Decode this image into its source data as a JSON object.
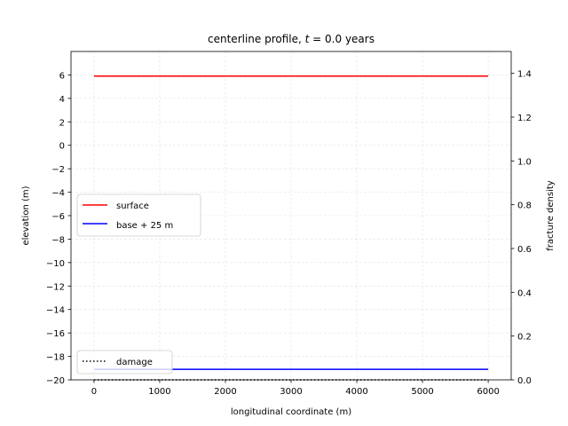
{
  "chart_data": {
    "type": "line",
    "title_prefix": "centerline profile, ",
    "title_var": "t",
    "title_suffix": " = 0.0 years",
    "xlabel": "longitudinal coordinate (m)",
    "ylabel": "elevation (m)",
    "y2label": "fracture density",
    "xlim": [
      -350,
      6350
    ],
    "ylim": [
      -20,
      8
    ],
    "y2lim": [
      0,
      1.5
    ],
    "xticks": [
      0,
      1000,
      2000,
      3000,
      4000,
      5000,
      6000
    ],
    "yticks": [
      -20,
      -18,
      -16,
      -14,
      -12,
      -10,
      -8,
      -6,
      -4,
      -2,
      0,
      2,
      4,
      6
    ],
    "y2ticks": [
      0.0,
      0.2,
      0.4,
      0.6,
      0.8,
      1.0,
      1.2,
      1.4
    ],
    "xtick_labels": [
      "0",
      "1000",
      "2000",
      "3000",
      "4000",
      "5000",
      "6000"
    ],
    "ytick_labels": [
      "−20",
      "−18",
      "−16",
      "−14",
      "−12",
      "−10",
      "−8",
      "−6",
      "−4",
      "−2",
      "0",
      "2",
      "4",
      "6"
    ],
    "y2tick_labels": [
      "0.0",
      "0.2",
      "0.4",
      "0.6",
      "0.8",
      "1.0",
      "1.2",
      "1.4"
    ],
    "grid": true,
    "series": [
      {
        "name": "surface",
        "axis": "left",
        "color": "#ff0000",
        "style": "solid",
        "x": [
          0,
          6000
        ],
        "y": [
          5.9,
          5.9
        ]
      },
      {
        "name": "base + 25 m",
        "axis": "left",
        "color": "#0000ff",
        "style": "solid",
        "x": [
          0,
          6000
        ],
        "y": [
          -19.1,
          -19.1
        ]
      },
      {
        "name": "damage",
        "axis": "right",
        "color": "#000000",
        "style": "dotted",
        "x": [
          0,
          6000
        ],
        "y": [
          0.0,
          0.0
        ]
      }
    ],
    "legend_left": {
      "placement": "center-left",
      "entries": [
        "surface",
        "base + 25 m"
      ]
    },
    "legend_right": {
      "placement": "lower-left",
      "entries": [
        "damage"
      ]
    }
  }
}
